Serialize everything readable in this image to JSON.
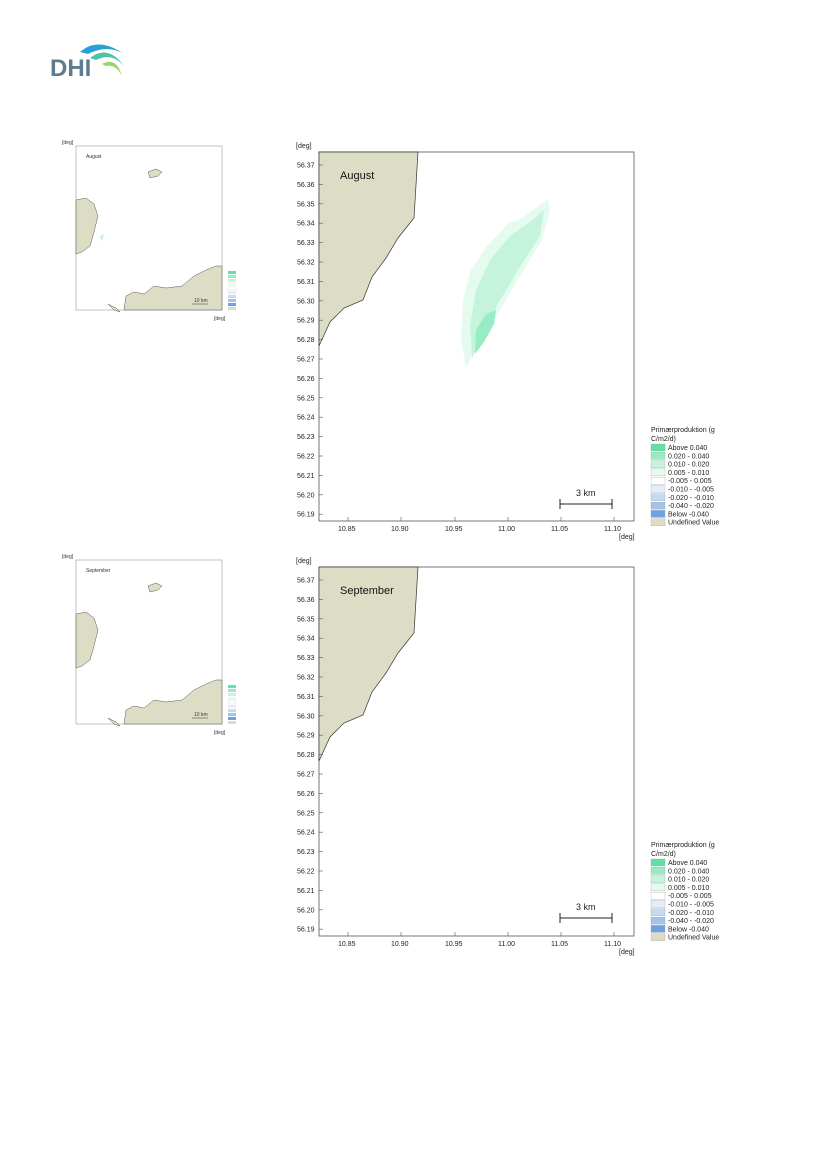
{
  "logo": {
    "text": "DHI",
    "icon": "dhi-wave-logo",
    "colors": [
      "#2a9fd6",
      "#4cc3a8",
      "#97d46a"
    ]
  },
  "axis_unit": "[deg]",
  "y_ticks": [
    "56.37",
    "56.36",
    "56.35",
    "56.34",
    "56.33",
    "56.32",
    "56.31",
    "56.30",
    "56.29",
    "56.28",
    "56.27",
    "56.26",
    "56.25",
    "56.24",
    "56.23",
    "56.22",
    "56.21",
    "56.20",
    "56.19"
  ],
  "x_ticks": [
    "10.85",
    "10.90",
    "10.95",
    "11.00",
    "11.05",
    "11.10"
  ],
  "scale_bar": "3 km",
  "mini_scale_bar": "10 km",
  "legend": {
    "title_line1": "Primærproduktion (g",
    "title_line2": "C/m2/d)",
    "items": [
      {
        "label": "Above    0.040",
        "color": "#5fe2a4"
      },
      {
        "label": "0.020 -  0.040",
        "color": "#98ecc4"
      },
      {
        "label": "0.010 -  0.020",
        "color": "#c5f4dd"
      },
      {
        "label": "0.005 -  0.010",
        "color": "#e6fbf0"
      },
      {
        "label": "-0.005 -  0.005",
        "color": "#ffffff"
      },
      {
        "label": "-0.010 - -0.005",
        "color": "#e4eef8"
      },
      {
        "label": "-0.020 - -0.010",
        "color": "#c5dbf1"
      },
      {
        "label": "-0.040 - -0.020",
        "color": "#a3c4ea"
      },
      {
        "label": "Below   -0.040",
        "color": "#6fa2e0"
      },
      {
        "label": "Undefined Value",
        "color": "#ddddc6"
      }
    ]
  },
  "colors": {
    "land": "#ddddc6",
    "coast": "#333333",
    "frame": "#555555"
  },
  "panels": [
    {
      "month": "August",
      "has_plume": true
    },
    {
      "month": "September",
      "has_plume": false
    }
  ]
}
